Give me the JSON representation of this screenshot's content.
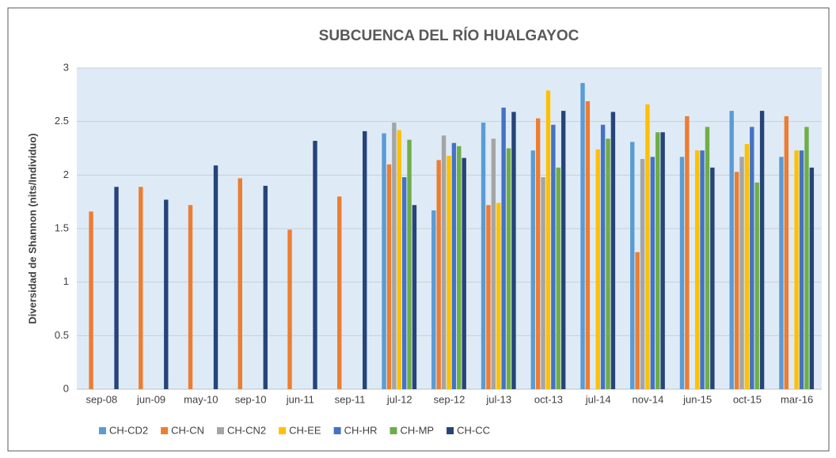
{
  "chart_data": {
    "type": "bar",
    "title": "SUBCUENCA DEL RÍO HUALGAYOC",
    "y_label": "Diversidad  de Shannon (nits/Individuo)",
    "categories": [
      "sep-08",
      "jun-09",
      "may-10",
      "sep-10",
      "jun-11",
      "sep-11",
      "jul-12",
      "sep-12",
      "jul-13",
      "oct-13",
      "jul-14",
      "nov-14",
      "jun-15",
      "oct-15",
      "mar-16"
    ],
    "series": [
      {
        "name": "CH-CD2",
        "color": "#5b9bd5",
        "values": [
          null,
          null,
          null,
          null,
          null,
          null,
          2.39,
          1.67,
          2.49,
          2.23,
          2.86,
          2.31,
          2.17,
          2.6,
          2.17
        ]
      },
      {
        "name": "CH-CN",
        "color": "#ed7d31",
        "values": [
          1.66,
          1.89,
          1.72,
          1.97,
          1.49,
          1.8,
          2.1,
          2.14,
          1.72,
          2.53,
          2.69,
          1.28,
          2.55,
          2.03,
          2.55
        ]
      },
      {
        "name": "CH-CN2",
        "color": "#a5a5a5",
        "values": [
          null,
          null,
          null,
          null,
          null,
          null,
          2.49,
          2.37,
          2.34,
          1.98,
          null,
          2.15,
          null,
          2.17,
          null
        ]
      },
      {
        "name": "CH-EE",
        "color": "#ffc000",
        "values": [
          null,
          null,
          null,
          null,
          null,
          null,
          2.42,
          2.18,
          1.74,
          2.79,
          2.24,
          2.66,
          2.23,
          2.29,
          2.23
        ]
      },
      {
        "name": "CH-HR",
        "color": "#4472c4",
        "values": [
          null,
          null,
          null,
          null,
          null,
          null,
          1.98,
          2.3,
          2.63,
          2.47,
          2.47,
          2.17,
          2.23,
          2.45,
          2.23
        ]
      },
      {
        "name": "CH-MP",
        "color": "#70ad47",
        "values": [
          null,
          null,
          null,
          null,
          null,
          null,
          2.33,
          2.27,
          2.25,
          2.07,
          2.34,
          2.4,
          2.45,
          1.93,
          2.45
        ]
      },
      {
        "name": "CH-CC",
        "color": "#264478",
        "values": [
          1.89,
          1.77,
          2.09,
          1.9,
          2.32,
          2.41,
          1.72,
          2.16,
          2.59,
          2.6,
          2.59,
          2.4,
          2.07,
          2.6,
          2.07
        ]
      }
    ],
    "ylim": [
      0,
      3
    ],
    "yticks": [
      0,
      0.5,
      1,
      1.5,
      2,
      2.5,
      3
    ],
    "grid": true,
    "legend": "bottom"
  }
}
